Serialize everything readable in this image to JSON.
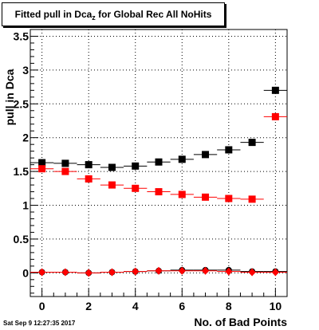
{
  "title": {
    "prefix": "Fitted pull in Dca",
    "subscript": "z",
    "suffix": " for Global Rec All NoHits"
  },
  "timestamp": "Sat Sep  9 12:27:35 2017",
  "chart_data": {
    "type": "scatter",
    "xlabel": "No. of Bad Points",
    "ylabel": "pull in Dca",
    "xlim": [
      -0.5,
      10.5
    ],
    "ylim": [
      -0.35,
      3.6
    ],
    "x_ticks": [
      0,
      2,
      4,
      6,
      8,
      10
    ],
    "y_ticks": [
      0,
      0.5,
      1,
      1.5,
      2,
      2.5,
      3,
      3.5
    ],
    "y_tick_labels": [
      "0",
      "0.5",
      "1",
      "1.5",
      "2",
      "2.5",
      "3",
      "3.5"
    ],
    "grid": "dotted",
    "series": [
      {
        "marker": "square",
        "color": "#000000",
        "x": [
          0,
          1,
          2,
          3,
          4,
          5,
          6,
          7,
          8,
          9,
          10
        ],
        "values": [
          1.63,
          1.62,
          1.6,
          1.56,
          1.58,
          1.64,
          1.68,
          1.75,
          1.82,
          1.93,
          2.7
        ]
      },
      {
        "marker": "square",
        "color": "#ff0000",
        "x": [
          0,
          1,
          2,
          3,
          4,
          5,
          6,
          7,
          8,
          9,
          10
        ],
        "values": [
          1.54,
          1.5,
          1.39,
          1.3,
          1.25,
          1.2,
          1.16,
          1.12,
          1.1,
          1.09,
          2.31
        ]
      },
      {
        "marker": "circle",
        "color": "#000000",
        "x": [
          0,
          1,
          2,
          3,
          4,
          5,
          6,
          7,
          8,
          9,
          10
        ],
        "values": [
          0.01,
          0.01,
          0.0,
          0.01,
          0.02,
          0.03,
          0.04,
          0.04,
          0.04,
          0.02,
          0.02
        ]
      },
      {
        "marker": "diamond",
        "color": "#ff0000",
        "x": [
          0,
          1,
          2,
          3,
          4,
          5,
          6,
          7,
          8,
          9,
          10
        ],
        "values": [
          0.01,
          0.01,
          0.0,
          0.01,
          0.02,
          0.03,
          0.03,
          0.03,
          0.02,
          0.01,
          0.01
        ]
      }
    ]
  }
}
